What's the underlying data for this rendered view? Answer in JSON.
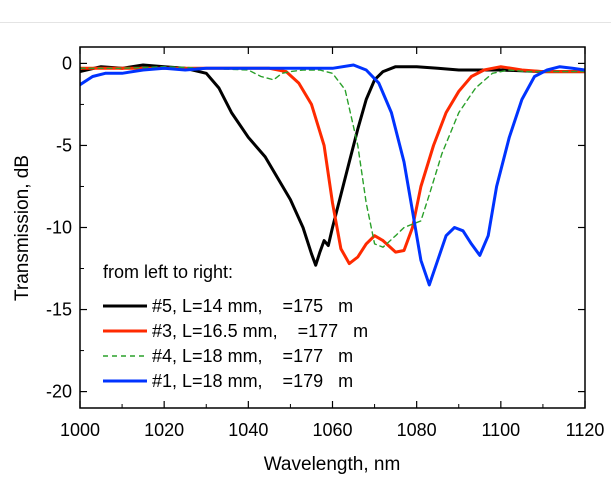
{
  "chart_data": {
    "type": "line",
    "xlabel": "Wavelength, nm",
    "ylabel": "Transmission, dB",
    "xlim": [
      1000,
      1120
    ],
    "ylim": [
      -21,
      1
    ],
    "xticks": [
      "1000",
      "1020",
      "1040",
      "1060",
      "1080",
      "1100",
      "1120"
    ],
    "yticks": [
      "0",
      "-5",
      "-10",
      "-15",
      "-20"
    ],
    "legend": {
      "title": "from left to right:",
      "placement": "bottom-left"
    },
    "series": [
      {
        "name": "#5, L=14 mm,    =175   m",
        "color": "#000000",
        "dash": "solid",
        "points": [
          [
            1000,
            -0.5
          ],
          [
            1005,
            -0.2
          ],
          [
            1010,
            -0.3
          ],
          [
            1015,
            -0.1
          ],
          [
            1020,
            -0.2
          ],
          [
            1025,
            -0.3
          ],
          [
            1030,
            -0.6
          ],
          [
            1033,
            -1.5
          ],
          [
            1036,
            -3.0
          ],
          [
            1040,
            -4.5
          ],
          [
            1044,
            -5.7
          ],
          [
            1047,
            -7.0
          ],
          [
            1050,
            -8.3
          ],
          [
            1053,
            -10.0
          ],
          [
            1055,
            -11.6
          ],
          [
            1056,
            -12.3
          ],
          [
            1057,
            -11.5
          ],
          [
            1058,
            -10.8
          ],
          [
            1059,
            -11.1
          ],
          [
            1060,
            -10.0
          ],
          [
            1062,
            -8.0
          ],
          [
            1064,
            -6.0
          ],
          [
            1066,
            -4.0
          ],
          [
            1068,
            -2.2
          ],
          [
            1070,
            -1.0
          ],
          [
            1072,
            -0.5
          ],
          [
            1075,
            -0.2
          ],
          [
            1080,
            -0.2
          ],
          [
            1085,
            -0.3
          ],
          [
            1090,
            -0.4
          ],
          [
            1100,
            -0.4
          ],
          [
            1110,
            -0.5
          ],
          [
            1120,
            -0.5
          ]
        ]
      },
      {
        "name": "#3, L=16.5 mm,    =177   m",
        "color": "#ff2a00",
        "dash": "solid",
        "points": [
          [
            1000,
            -0.3
          ],
          [
            1010,
            -0.3
          ],
          [
            1020,
            -0.3
          ],
          [
            1030,
            -0.3
          ],
          [
            1040,
            -0.3
          ],
          [
            1045,
            -0.3
          ],
          [
            1049,
            -0.5
          ],
          [
            1052,
            -1.2
          ],
          [
            1055,
            -2.5
          ],
          [
            1058,
            -5.0
          ],
          [
            1060,
            -8.5
          ],
          [
            1062,
            -11.3
          ],
          [
            1064,
            -12.2
          ],
          [
            1066,
            -11.8
          ],
          [
            1068,
            -11.0
          ],
          [
            1070,
            -10.5
          ],
          [
            1072,
            -10.8
          ],
          [
            1075,
            -11.5
          ],
          [
            1077,
            -11.4
          ],
          [
            1079,
            -10.0
          ],
          [
            1081,
            -7.5
          ],
          [
            1084,
            -5.0
          ],
          [
            1087,
            -3.0
          ],
          [
            1090,
            -1.7
          ],
          [
            1093,
            -0.8
          ],
          [
            1096,
            -0.4
          ],
          [
            1100,
            -0.2
          ],
          [
            1105,
            -0.4
          ],
          [
            1110,
            -0.5
          ],
          [
            1115,
            -0.5
          ],
          [
            1120,
            -0.5
          ]
        ]
      },
      {
        "name": "#4, L=18 mm,    =177   m",
        "color": "#2aa02a",
        "dash": "dashed",
        "points": [
          [
            1000,
            -0.3
          ],
          [
            1010,
            -0.3
          ],
          [
            1020,
            -0.2
          ],
          [
            1030,
            -0.3
          ],
          [
            1040,
            -0.4
          ],
          [
            1043,
            -0.8
          ],
          [
            1046,
            -1.0
          ],
          [
            1048,
            -0.6
          ],
          [
            1050,
            -0.5
          ],
          [
            1053,
            -0.4
          ],
          [
            1057,
            -0.4
          ],
          [
            1060,
            -0.6
          ],
          [
            1063,
            -1.6
          ],
          [
            1066,
            -5.0
          ],
          [
            1068,
            -8.5
          ],
          [
            1070,
            -11.0
          ],
          [
            1072,
            -11.2
          ],
          [
            1075,
            -10.5
          ],
          [
            1077,
            -10.0
          ],
          [
            1079,
            -9.8
          ],
          [
            1081,
            -9.6
          ],
          [
            1083,
            -8.0
          ],
          [
            1086,
            -5.5
          ],
          [
            1090,
            -3.0
          ],
          [
            1094,
            -1.5
          ],
          [
            1098,
            -0.6
          ],
          [
            1102,
            -0.4
          ],
          [
            1106,
            -0.5
          ],
          [
            1110,
            -0.5
          ],
          [
            1120,
            -0.5
          ]
        ]
      },
      {
        "name": "#1, L=18 mm,    =179   m",
        "color": "#0033ff",
        "dash": "solid",
        "points": [
          [
            1000,
            -1.3
          ],
          [
            1003,
            -0.8
          ],
          [
            1006,
            -0.6
          ],
          [
            1010,
            -0.6
          ],
          [
            1015,
            -0.4
          ],
          [
            1020,
            -0.3
          ],
          [
            1025,
            -0.4
          ],
          [
            1030,
            -0.3
          ],
          [
            1040,
            -0.3
          ],
          [
            1050,
            -0.3
          ],
          [
            1055,
            -0.3
          ],
          [
            1060,
            -0.3
          ],
          [
            1065,
            -0.1
          ],
          [
            1068,
            -0.4
          ],
          [
            1071,
            -1.2
          ],
          [
            1074,
            -3.0
          ],
          [
            1077,
            -6.0
          ],
          [
            1079,
            -9.0
          ],
          [
            1081,
            -12.0
          ],
          [
            1083,
            -13.5
          ],
          [
            1085,
            -12.0
          ],
          [
            1087,
            -10.5
          ],
          [
            1089,
            -10.0
          ],
          [
            1091,
            -10.2
          ],
          [
            1093,
            -11.0
          ],
          [
            1095,
            -11.7
          ],
          [
            1097,
            -10.5
          ],
          [
            1099,
            -7.5
          ],
          [
            1102,
            -4.5
          ],
          [
            1105,
            -2.2
          ],
          [
            1108,
            -0.8
          ],
          [
            1111,
            -0.4
          ],
          [
            1114,
            -0.2
          ],
          [
            1117,
            -0.3
          ],
          [
            1120,
            -0.4
          ]
        ]
      }
    ]
  }
}
